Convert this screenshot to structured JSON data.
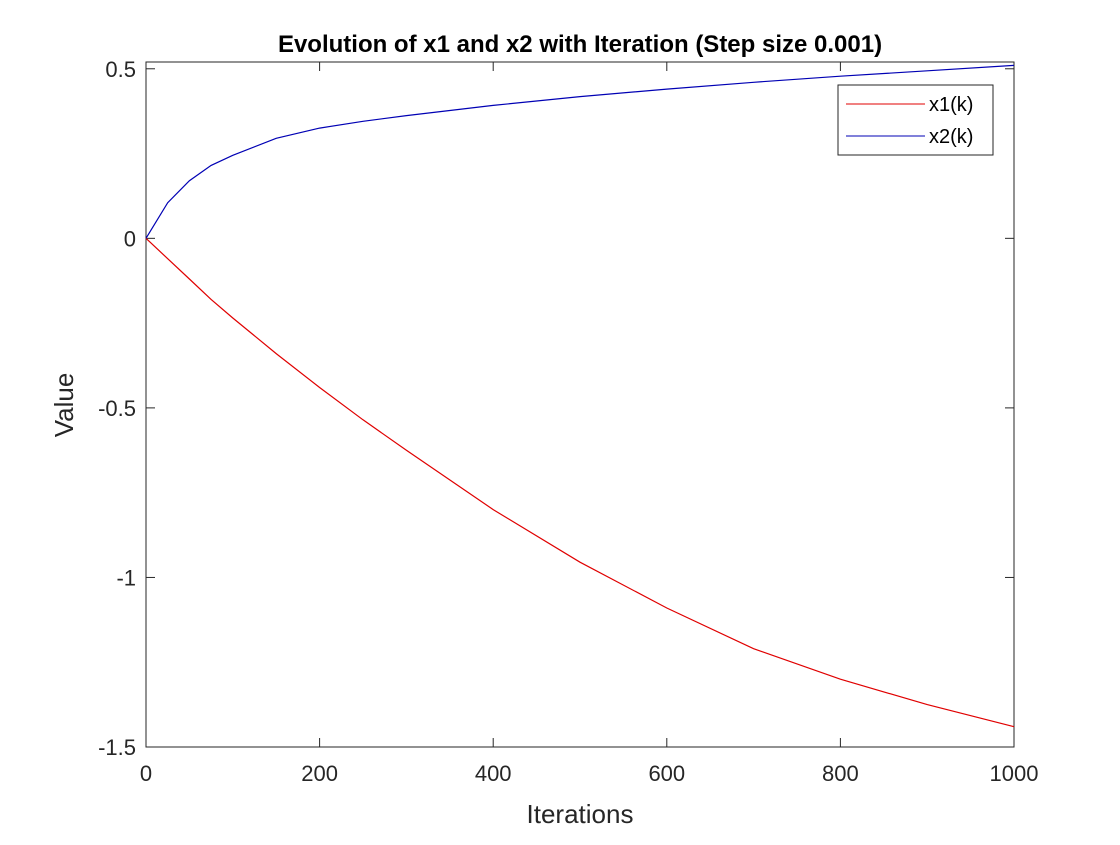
{
  "chart_data": {
    "type": "line",
    "title": "Evolution of x1 and x2 with Iteration (Step size 0.001)",
    "xlabel": "Iterations",
    "ylabel": "Value",
    "xlim": [
      0,
      1000
    ],
    "ylim": [
      -1.5,
      0.52
    ],
    "xticks": [
      0,
      200,
      400,
      600,
      800,
      1000
    ],
    "xtick_labels": [
      "0",
      "200",
      "400",
      "600",
      "800",
      "1000"
    ],
    "yticks": [
      -1.5,
      -1,
      -0.5,
      0,
      0.5
    ],
    "ytick_labels": [
      "-1.5",
      "-1",
      "-0.5",
      "0",
      "0.5"
    ],
    "grid": false,
    "legend_position": "top-right",
    "x": [
      0,
      25,
      50,
      75,
      100,
      150,
      200,
      250,
      300,
      400,
      500,
      600,
      700,
      800,
      900,
      1000
    ],
    "series": [
      {
        "name": "x1(k)",
        "color": "#e00000",
        "values": [
          0,
          -0.06,
          -0.12,
          -0.18,
          -0.235,
          -0.34,
          -0.44,
          -0.535,
          -0.625,
          -0.8,
          -0.955,
          -1.09,
          -1.21,
          -1.3,
          -1.375,
          -1.44
        ]
      },
      {
        "name": "x2(k)",
        "color": "#0000b4",
        "values": [
          0,
          0.105,
          0.17,
          0.215,
          0.245,
          0.295,
          0.325,
          0.345,
          0.362,
          0.392,
          0.418,
          0.44,
          0.46,
          0.478,
          0.494,
          0.51
        ]
      }
    ]
  }
}
